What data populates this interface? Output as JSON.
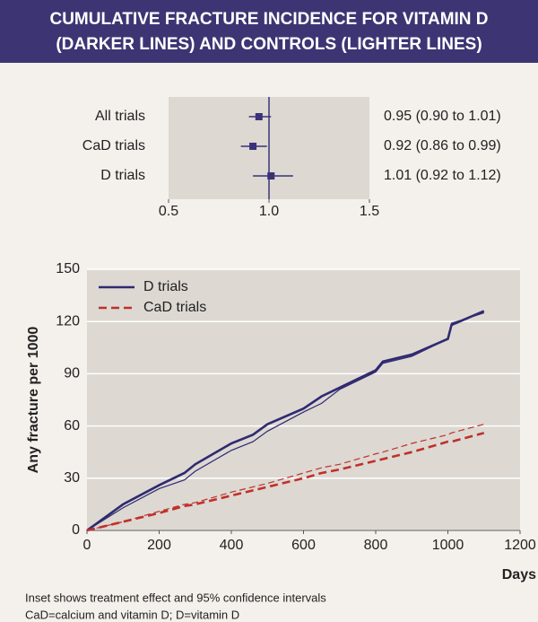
{
  "title": [
    "CUMULATIVE FRACTURE INCIDENCE FOR VITAMIN D",
    "(DARKER LINES) AND CONTROLS (LIGHTER LINES)"
  ],
  "notes": [
    "Inset shows treatment effect and 95% confidence intervals",
    "CaD=calcium and vitamin D; D=vitamin D"
  ],
  "chart_data": [
    {
      "type": "forest",
      "categories": [
        "All trials",
        "CaD trials",
        "D trials"
      ],
      "values": [
        0.95,
        0.92,
        1.01
      ],
      "lower": [
        0.9,
        0.86,
        0.92
      ],
      "upper": [
        1.01,
        0.99,
        1.12
      ],
      "value_labels": [
        "0.95 (0.90 to 1.01)",
        "0.92 (0.86 to 0.99)",
        "1.01 (0.92 to 1.12)"
      ],
      "color": "#3a3278",
      "reference_line": 1,
      "xlim": [
        0.5,
        1.5
      ],
      "xticks": [
        0.5,
        {
          "value": 1,
          "label": "1.0"
        },
        1.5
      ]
    },
    {
      "type": "line",
      "xlabel": "Days",
      "ylabel": "Any fracture per 1000",
      "x": [
        0,
        100,
        200,
        270,
        300,
        400,
        460,
        500,
        600,
        650,
        700,
        800,
        820,
        900,
        1000,
        1010,
        1100
      ],
      "series": [
        {
          "name": "D trials",
          "color": "#2f2a70",
          "dashed": false,
          "values": [
            0,
            15,
            26,
            33,
            38,
            50,
            55,
            61,
            70,
            77,
            82,
            92,
            97,
            101,
            110,
            118,
            126
          ],
          "control_values": [
            0,
            13,
            24,
            29,
            34,
            46,
            51,
            57,
            68,
            73,
            81,
            91,
            96,
            100,
            110,
            119,
            125
          ]
        },
        {
          "name": "CaD trials",
          "color": "#c0302a",
          "dashed": true,
          "values": [
            0,
            5,
            10,
            14,
            15,
            20,
            23,
            25,
            30,
            33,
            35,
            40,
            41,
            45,
            51,
            51,
            56
          ],
          "control_values": [
            0,
            5,
            11,
            15,
            16,
            22,
            25,
            27,
            33,
            36,
            38,
            44,
            45,
            50,
            55,
            56,
            61
          ]
        }
      ],
      "xlim": [
        0,
        1200
      ],
      "xticks": [
        0,
        200,
        400,
        600,
        800,
        1000,
        1200
      ],
      "ylim": [
        0,
        150
      ],
      "yticks": [
        0,
        30,
        60,
        90,
        120,
        150
      ],
      "grid": true,
      "legend": "top-left"
    }
  ]
}
